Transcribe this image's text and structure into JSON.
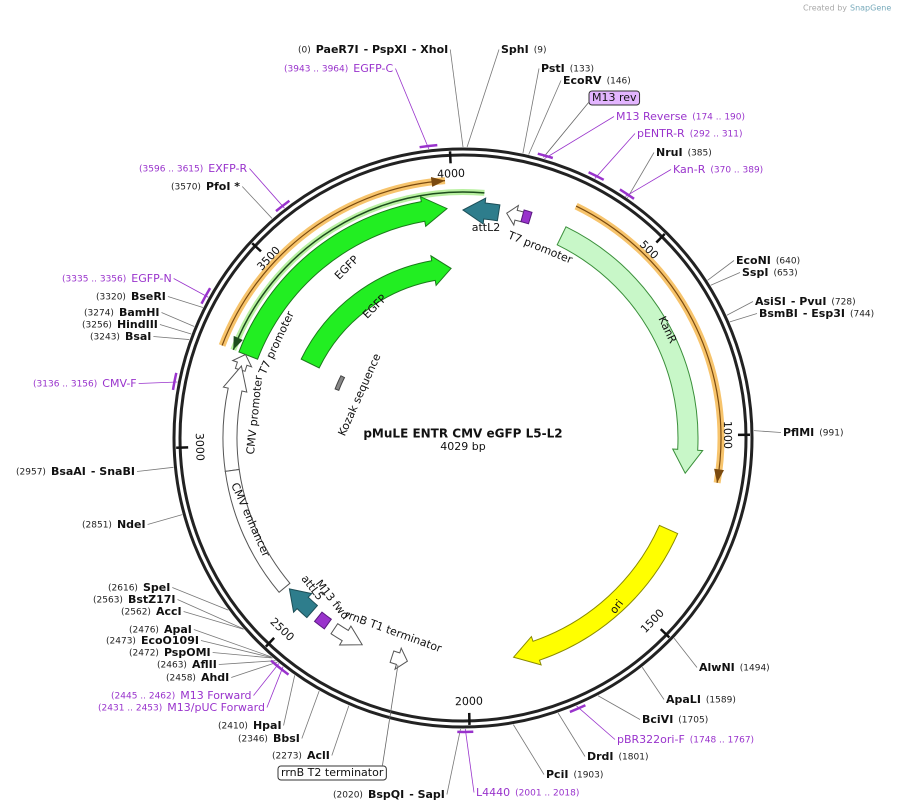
{
  "header": {
    "created_by": "Created by",
    "brand": "SnapGene"
  },
  "map": {
    "title": "pMuLE ENTR CMV eGFP L5-L2",
    "length": "4029 bp"
  },
  "ticks": [
    500,
    1000,
    1500,
    2000,
    2500,
    3000,
    3500,
    4000
  ],
  "sites": [
    {
      "names": [
        "PaeR7I",
        "- PspXI",
        "- XhoI"
      ],
      "pos": "(0)"
    },
    {
      "names": [
        "SphI"
      ],
      "pos": "(9)"
    },
    {
      "names": [
        "PstI"
      ],
      "pos": "(133)"
    },
    {
      "names": [
        "EcoRV"
      ],
      "pos": "(146)"
    },
    {
      "names": [
        "NruI"
      ],
      "pos": "(385)"
    },
    {
      "names": [
        "EcoNI"
      ],
      "pos": "(640)"
    },
    {
      "names": [
        "SspI"
      ],
      "pos": "(653)"
    },
    {
      "names": [
        "AsiSI",
        "- PvuI"
      ],
      "pos": "(728)"
    },
    {
      "names": [
        "BsmBI",
        "- Esp3I"
      ],
      "pos": "(744)"
    },
    {
      "names": [
        "PflMI"
      ],
      "pos": "(991)"
    },
    {
      "names": [
        "AlwNI"
      ],
      "pos": "(1494)"
    },
    {
      "names": [
        "ApaLI"
      ],
      "pos": "(1589)"
    },
    {
      "names": [
        "BciVI"
      ],
      "pos": "(1705)"
    },
    {
      "names": [
        "DrdI"
      ],
      "pos": "(1801)"
    },
    {
      "names": [
        "PciI"
      ],
      "pos": "(1903)"
    },
    {
      "names": [
        "BspQI",
        "- SapI"
      ],
      "pos": "(2020)"
    },
    {
      "names": [
        "AclI"
      ],
      "pos": "(2273)"
    },
    {
      "names": [
        "BbsI"
      ],
      "pos": "(2346)"
    },
    {
      "names": [
        "HpaI"
      ],
      "pos": "(2410)"
    },
    {
      "names": [
        "AhdI"
      ],
      "pos": "(2458)"
    },
    {
      "names": [
        "AflII"
      ],
      "pos": "(2463)"
    },
    {
      "names": [
        "PspOMI"
      ],
      "pos": "(2472)"
    },
    {
      "names": [
        "EcoO109I"
      ],
      "pos": "(2473)"
    },
    {
      "names": [
        "ApaI"
      ],
      "pos": "(2476)"
    },
    {
      "names": [
        "AccI"
      ],
      "pos": "(2562)"
    },
    {
      "names": [
        "BstZ17I"
      ],
      "pos": "(2563)"
    },
    {
      "names": [
        "SpeI"
      ],
      "pos": "(2616)"
    },
    {
      "names": [
        "NdeI"
      ],
      "pos": "(2851)"
    },
    {
      "names": [
        "BsaAI",
        "- SnaBI"
      ],
      "pos": "(2957)"
    },
    {
      "names": [
        "BsaI"
      ],
      "pos": "(3243)"
    },
    {
      "names": [
        "HindIII"
      ],
      "pos": "(3256)"
    },
    {
      "names": [
        "BamHI"
      ],
      "pos": "(3274)"
    },
    {
      "names": [
        "BseRI"
      ],
      "pos": "(3320)"
    },
    {
      "names": [
        "PfoI *"
      ],
      "pos": "(3570)"
    }
  ],
  "primers": [
    {
      "name": "EGFP-C",
      "range": "(3943 .. 3964)"
    },
    {
      "name": "M13 Reverse",
      "range": "(174 .. 190)"
    },
    {
      "name": "pENTR-R",
      "range": "(292 .. 311)"
    },
    {
      "name": "Kan-R",
      "range": "(370 .. 389)"
    },
    {
      "name": "pBR322ori-F",
      "range": "(1748 .. 1767)"
    },
    {
      "name": "L4440",
      "range": "(2001 .. 2018)"
    },
    {
      "name": "M13/pUC Forward",
      "range": "(2431 .. 2453)"
    },
    {
      "name": "M13 Forward",
      "range": "(2445 .. 2462)"
    },
    {
      "name": "CMV-F",
      "range": "(3136 .. 3156)"
    },
    {
      "name": "EGFP-N",
      "range": "(3335 .. 3356)"
    },
    {
      "name": "EXFP-R",
      "range": "(3596 .. 3615)"
    }
  ],
  "features": [
    {
      "label": "EGFP"
    },
    {
      "label": "EGFP"
    },
    {
      "label": "KanR"
    },
    {
      "label": "ori"
    },
    {
      "label": "T7 promoter"
    },
    {
      "label": "T7 promoter"
    },
    {
      "label": "CMV promoter"
    },
    {
      "label": "CMV enhancer"
    },
    {
      "label": "attL2"
    },
    {
      "label": "attL5"
    },
    {
      "label": "M13 fwd"
    },
    {
      "label": "rrnB T1 terminator"
    },
    {
      "label": "Kozak sequence"
    },
    {
      "label": "M13 rev"
    },
    {
      "label": "rrnB T2 terminator"
    }
  ]
}
